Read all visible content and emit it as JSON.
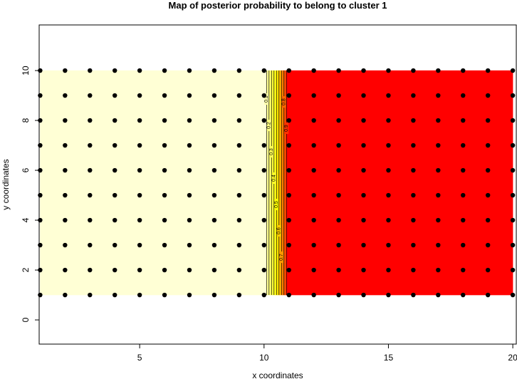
{
  "chart_data": {
    "type": "contour",
    "title": "Map of posterior probability to belong to cluster  1",
    "xlabel": "x coordinates",
    "ylabel": "y coordinates",
    "grid_x": [
      1,
      2,
      3,
      4,
      5,
      6,
      7,
      8,
      9,
      10,
      11,
      12,
      13,
      14,
      15,
      16,
      17,
      18,
      19,
      20
    ],
    "grid_y": [
      1,
      2,
      3,
      4,
      5,
      6,
      7,
      8,
      9,
      10
    ],
    "probability": [
      0,
      0,
      0,
      0,
      0,
      0,
      0,
      0,
      0,
      0,
      1,
      1,
      1,
      1,
      1,
      1,
      1,
      1,
      1,
      1
    ],
    "contour_levels": [
      0.1,
      0.2,
      0.3,
      0.4,
      0.5,
      0.6,
      0.7,
      0.8,
      0.9
    ],
    "low_color": "#ffffd5",
    "mid_color": "#ffff00",
    "high_color": "#ff0000",
    "point_color": "#000000",
    "xlim": [
      0.96,
      20.14
    ],
    "ylim": [
      -0.97,
      11.83
    ],
    "xticks": [
      5,
      10,
      15,
      20
    ],
    "yticks": [
      0,
      2,
      4,
      6,
      8,
      10
    ]
  }
}
